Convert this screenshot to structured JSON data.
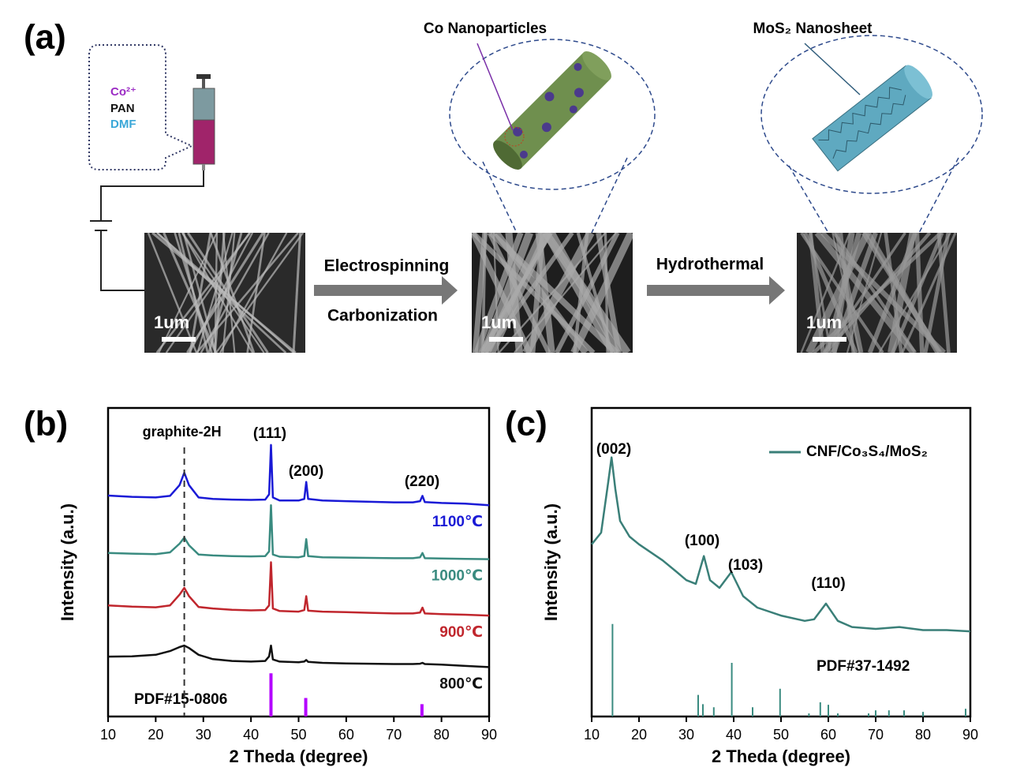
{
  "panel_a": {
    "panel_label": "(a)",
    "precursors": [
      "Co²⁺",
      "PAN",
      "DMF"
    ],
    "zoom_labels": [
      "Co Nanoparticles",
      "MoS₂ Nanosheet"
    ],
    "steps": [
      "Electrospinning",
      "Carbonization",
      "Hydrothermal"
    ],
    "scale_bars": [
      "1um",
      "1um",
      "1um"
    ]
  },
  "chart_data": [
    {
      "type": "line",
      "panel_label": "(b)",
      "x_label": "2 Theda (degree)",
      "y_label": "Intensity (a.u.)",
      "xlim": [
        10,
        90
      ],
      "ylim": [
        0,
        100
      ],
      "xticks": [
        10,
        20,
        30,
        40,
        50,
        60,
        70,
        80,
        90
      ],
      "x": [
        10,
        15,
        20,
        23,
        25,
        26,
        27,
        29,
        32,
        36,
        40,
        43,
        43.8,
        44.2,
        44.6,
        46,
        50,
        51.2,
        51.6,
        52,
        55,
        60,
        65,
        70,
        74,
        75.5,
        76,
        76.5,
        80,
        85,
        90
      ],
      "series": [
        {
          "name": "1100℃",
          "color": "#1a1ad6",
          "values": [
            71.6,
            71.2,
            71,
            71.5,
            75,
            79,
            75,
            71,
            70.5,
            70.3,
            70.2,
            70.3,
            72,
            88,
            71,
            70,
            70,
            70.5,
            76,
            70.5,
            70,
            69.8,
            69.6,
            69.4,
            69.4,
            69.8,
            71.5,
            69.5,
            69.2,
            69,
            68.5
          ]
        },
        {
          "name": "1000℃",
          "color": "#3a8b80",
          "values": [
            53,
            52.8,
            52.6,
            53.2,
            56,
            58,
            55.5,
            52.5,
            52.2,
            52,
            51.9,
            52,
            53.5,
            68.5,
            52.5,
            51.8,
            51.6,
            52,
            57.5,
            52,
            51.6,
            51.5,
            51.4,
            51.3,
            51.3,
            51.6,
            53,
            51.3,
            51.2,
            51.1,
            51
          ]
        },
        {
          "name": "900℃",
          "color": "#c0262d",
          "values": [
            36,
            35.6,
            35.4,
            36,
            39.5,
            41.7,
            39,
            35.5,
            35,
            34.6,
            34.4,
            34.5,
            36,
            50,
            35,
            34.2,
            34,
            34.5,
            39,
            34.3,
            34,
            33.8,
            33.6,
            33.4,
            33.4,
            33.7,
            35.3,
            33.4,
            33.2,
            33,
            32.7
          ]
        },
        {
          "name": "800℃",
          "color": "#111111",
          "values": [
            19.4,
            19.5,
            20,
            21.2,
            22.5,
            23,
            22.2,
            20,
            18.6,
            18,
            17.8,
            18,
            19.5,
            23,
            18.5,
            17.8,
            17.6,
            17.8,
            18.3,
            17.7,
            17.4,
            17.2,
            17.1,
            17,
            17,
            17.1,
            17.4,
            17,
            16.8,
            16.4,
            16
          ]
        }
      ],
      "reference": {
        "name": "PDF#15-0806",
        "color": "#b400ff",
        "x": [
          44.2,
          51.5,
          75.9
        ],
        "values": [
          14,
          6,
          4
        ]
      },
      "vline": {
        "label": "graphite-2H",
        "x": 26
      },
      "annotations": [
        "(111)",
        "(200)",
        "(220)"
      ]
    },
    {
      "type": "line",
      "panel_label": "(c)",
      "x_label": "2 Theda (degree)",
      "y_label": "Intensity (a.u.)",
      "xlim": [
        10,
        90
      ],
      "ylim": [
        0,
        100
      ],
      "xticks": [
        10,
        20,
        30,
        40,
        50,
        60,
        70,
        80,
        90
      ],
      "legend": "upper right",
      "x": [
        10,
        12,
        13.5,
        14.2,
        15,
        16,
        18,
        20,
        25,
        28,
        30,
        32,
        33.7,
        35,
        37,
        39.5,
        42,
        45,
        50,
        55,
        57,
        59.5,
        62,
        65,
        70,
        75,
        80,
        85,
        90
      ],
      "series": [
        {
          "name": "CNF/Co₃S₄/MoS₂",
          "color": "#3a7f78",
          "values": [
            55.8,
            59.6,
            76,
            84,
            73.7,
            63.4,
            58.3,
            55.8,
            50.6,
            46.8,
            44.2,
            43,
            52,
            44.2,
            41.7,
            46.8,
            39,
            35.3,
            32.7,
            31,
            31.5,
            36.6,
            31,
            29,
            28.4,
            29,
            28,
            28,
            27.6
          ]
        }
      ],
      "reference": {
        "name": "PDF#37-1492",
        "color": "#3a8b80",
        "x": [
          14.4,
          32.5,
          33.5,
          35.8,
          39.6,
          44,
          49.8,
          55.9,
          58.3,
          60,
          62,
          68.5,
          70,
          72.8,
          76,
          80,
          89
        ],
        "values": [
          30,
          7,
          4,
          3,
          17.4,
          3,
          9,
          1,
          4.6,
          3.8,
          1,
          1,
          2,
          2,
          2,
          1.5,
          2.5
        ]
      },
      "annotations": [
        "(002)",
        "(100)",
        "(103)",
        "(110)"
      ]
    }
  ]
}
